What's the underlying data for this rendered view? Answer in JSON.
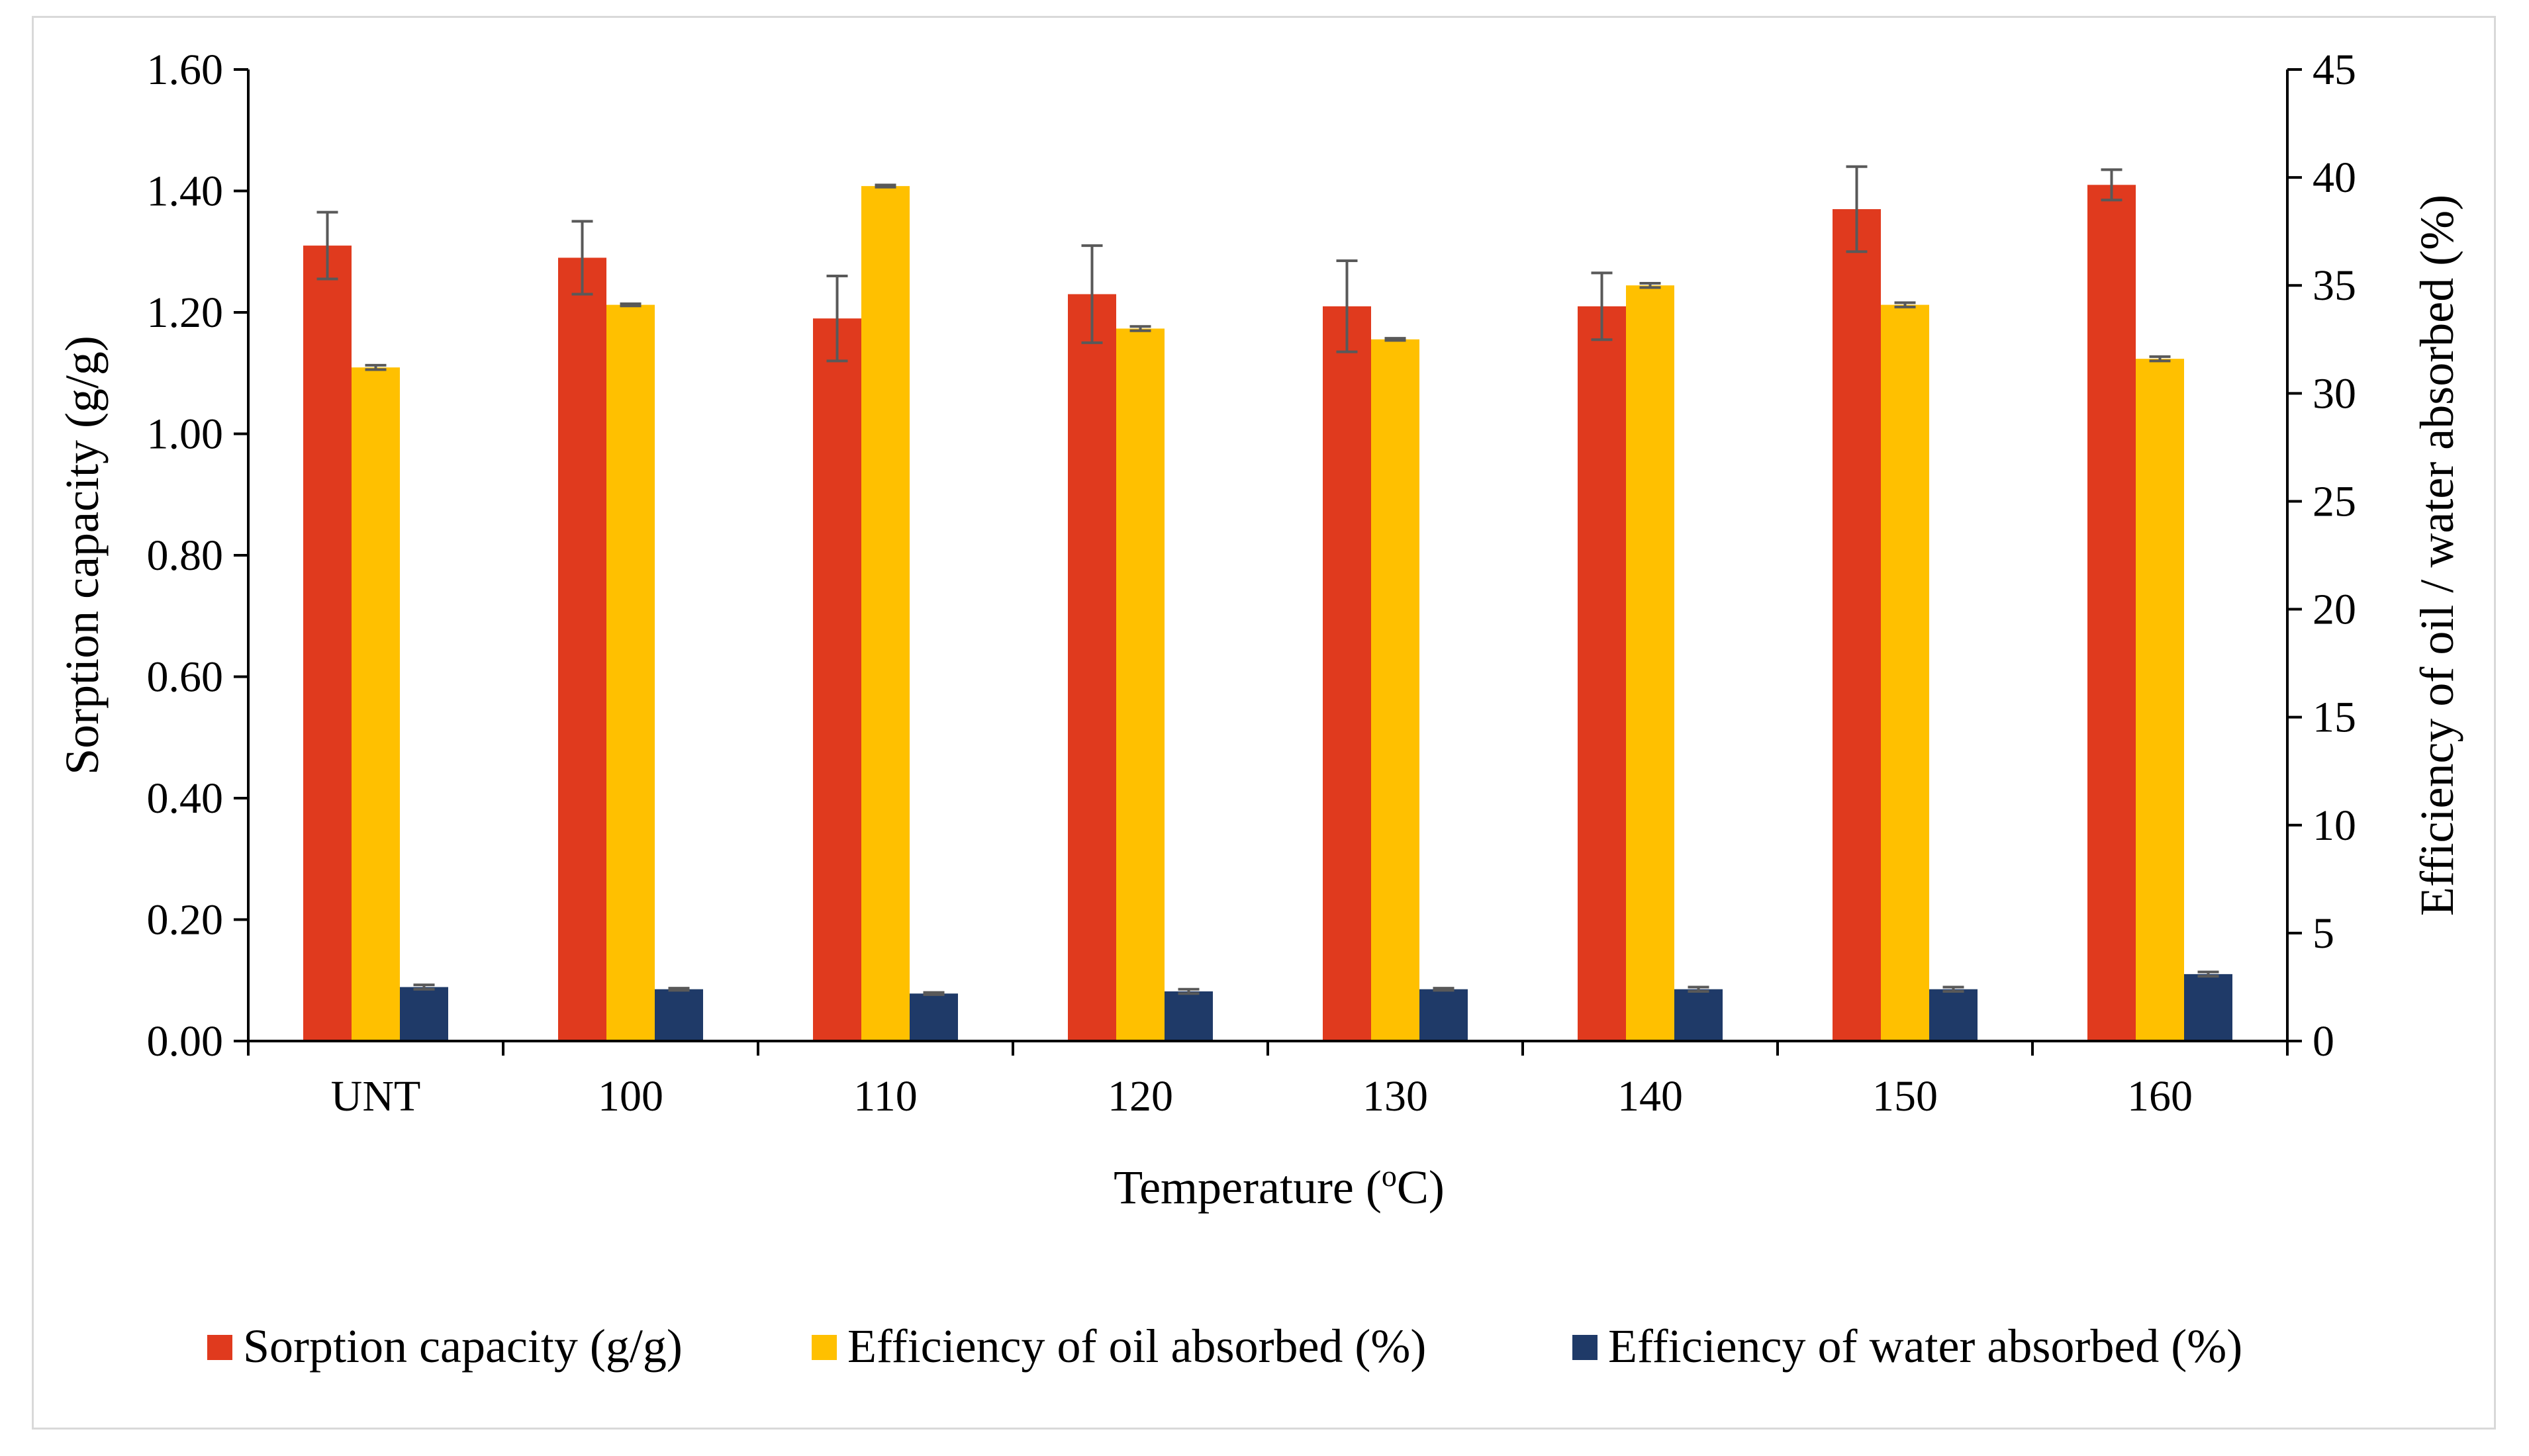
{
  "chart_data": {
    "type": "bar",
    "x_title": "Temperature (",
    "x_title_sup": "o",
    "x_title_end": "C)",
    "y_title_left": "Sorption capacity (g/g)",
    "y_title_right": "Efficiency of oil / water absorbed (%)",
    "categories": [
      "UNT",
      "100",
      "110",
      "120",
      "130",
      "140",
      "150",
      "160"
    ],
    "y_left_ticks": [
      "0.00",
      "0.20",
      "0.40",
      "0.60",
      "0.80",
      "1.00",
      "1.20",
      "1.40",
      "1.60"
    ],
    "y_left_range": [
      0,
      1.6
    ],
    "y_right_ticks": [
      "0",
      "5",
      "10",
      "15",
      "20",
      "25",
      "30",
      "35",
      "40",
      "45"
    ],
    "y_right_range": [
      0,
      45
    ],
    "series": [
      {
        "name": "Sorption capacity (g/g)",
        "axis": "left",
        "color": "#e03a1e",
        "values": [
          1.31,
          1.29,
          1.19,
          1.23,
          1.21,
          1.21,
          1.37,
          1.41
        ],
        "errors": [
          0.055,
          0.06,
          0.07,
          0.08,
          0.075,
          0.055,
          0.07,
          0.025
        ]
      },
      {
        "name": "Efficiency of oil absorbed (%)",
        "axis": "right",
        "color": "#ffc000",
        "values": [
          31.2,
          34.1,
          39.6,
          33.0,
          32.5,
          35.0,
          34.1,
          31.6
        ],
        "errors": [
          0.1,
          0.05,
          0.05,
          0.1,
          0.05,
          0.1,
          0.1,
          0.1
        ]
      },
      {
        "name": "Efficiency of water absorbed (%)",
        "axis": "right",
        "color": "#1f3a68",
        "values": [
          2.5,
          2.4,
          2.2,
          2.3,
          2.4,
          2.4,
          2.4,
          3.1
        ],
        "errors": [
          0.1,
          0.05,
          0.05,
          0.1,
          0.05,
          0.1,
          0.1,
          0.1
        ]
      }
    ],
    "legend": [
      {
        "label": "Sorption capacity (g/g)",
        "color": "#e03a1e"
      },
      {
        "label": "Efficiency of oil absorbed (%)",
        "color": "#ffc000"
      },
      {
        "label": "Efficiency of water absorbed (%)",
        "color": "#1f3a68"
      }
    ],
    "legend_position": "bottom"
  }
}
